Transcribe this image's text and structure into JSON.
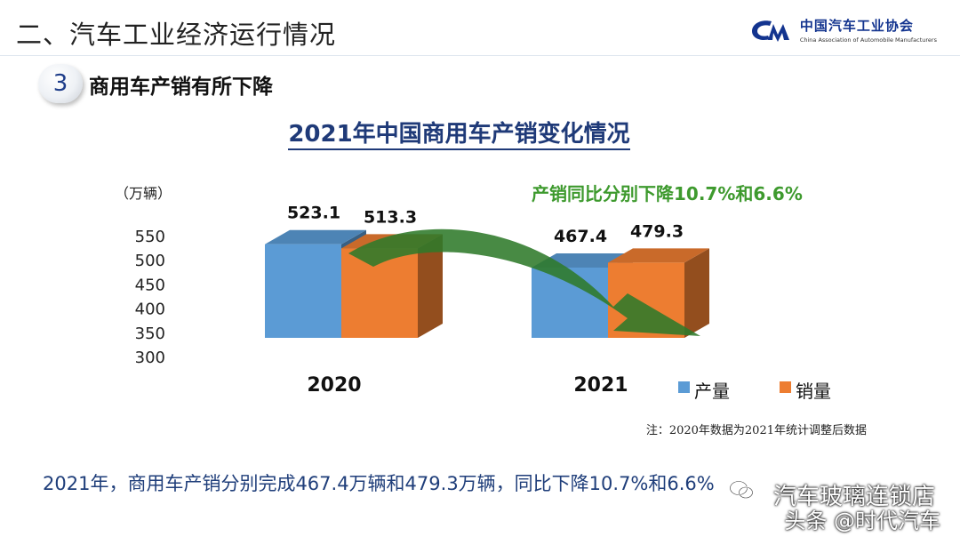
{
  "header": {
    "title": "二、汽车工业经济运行情况",
    "logo": {
      "name_cn": "中国汽车工业协会",
      "name_en": "China Association of Automobile Manufacturers",
      "brand_color": "#13348f"
    }
  },
  "section": {
    "number": "3",
    "title": "商用车产销有所下降"
  },
  "chart_data": {
    "type": "bar",
    "title": "2021年中国商用车产销变化情况",
    "unit_label": "（万辆）",
    "categories": [
      "2020",
      "2021"
    ],
    "series": [
      {
        "name": "产量",
        "values": [
          523.1,
          467.4
        ],
        "color": "#5b9bd5"
      },
      {
        "name": "销量",
        "values": [
          513.3,
          479.3
        ],
        "color": "#ed7d31"
      }
    ],
    "data_labels": [
      [
        "523.1",
        "513.3"
      ],
      [
        "467.4",
        "479.3"
      ]
    ],
    "yticks": [
      300,
      350,
      400,
      450,
      500,
      550
    ],
    "ylim": [
      300,
      550
    ],
    "three_d": true,
    "legend_position": "bottom-right",
    "annotation": {
      "text": "产销同比分别下降10.7%和6.6%",
      "color": "#3e9a2e"
    },
    "arrow_color": "#2f7a2a"
  },
  "footnote": "注：2020年数据为2021年统计调整后数据",
  "summary": "2021年，商用车产销分别完成467.4万辆和479.3万辆，同比下降10.7%和6.6%",
  "watermark": {
    "line1": "汽车玻璃连锁店",
    "line2": "头条 @时代汽车"
  }
}
